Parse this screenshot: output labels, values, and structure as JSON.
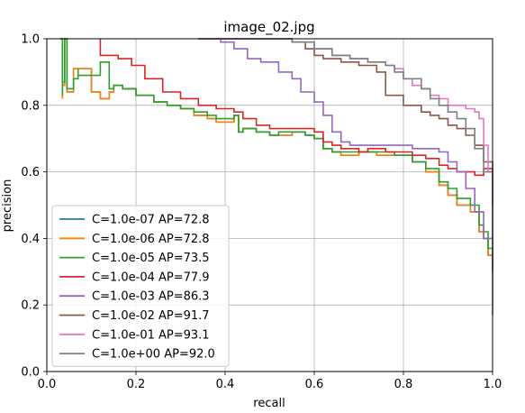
{
  "chart_data": {
    "type": "line",
    "title": "image_02.jpg",
    "xlabel": "recall",
    "ylabel": "precision",
    "xlim": [
      0.0,
      1.0
    ],
    "ylim": [
      0.0,
      1.0
    ],
    "xticks": [
      "0.0",
      "0.2",
      "0.4",
      "0.6",
      "0.8",
      "1.0"
    ],
    "yticks": [
      "0.0",
      "0.2",
      "0.4",
      "0.6",
      "0.8",
      "1.0"
    ],
    "grid": true,
    "legend_position": "lower-left",
    "series": [
      {
        "name": "C=1.0e-07 AP=72.8",
        "color": "#1f77b4",
        "x": [
          0.03,
          0.035,
          0.035,
          0.04,
          0.045,
          0.06,
          0.06,
          0.1,
          0.12,
          0.12,
          0.14,
          0.15,
          0.17,
          0.2,
          0.24,
          0.27,
          0.3,
          0.33,
          0.36,
          0.38,
          0.42,
          0.43,
          0.44,
          0.47,
          0.5,
          0.52,
          0.55,
          0.58,
          0.6,
          0.62,
          0.64,
          0.66,
          0.7,
          0.74,
          0.78,
          0.82,
          0.85,
          0.88,
          0.9,
          0.92,
          0.95,
          0.97,
          0.98,
          0.99,
          1.0
        ],
        "y": [
          1.0,
          0.82,
          0.86,
          1.0,
          0.84,
          0.87,
          0.91,
          0.84,
          0.83,
          0.82,
          0.84,
          0.86,
          0.85,
          0.83,
          0.81,
          0.8,
          0.79,
          0.77,
          0.76,
          0.75,
          0.77,
          0.72,
          0.73,
          0.72,
          0.71,
          0.71,
          0.72,
          0.71,
          0.7,
          0.67,
          0.66,
          0.65,
          0.66,
          0.65,
          0.65,
          0.63,
          0.6,
          0.56,
          0.53,
          0.5,
          0.48,
          0.42,
          0.4,
          0.35,
          0.31
        ]
      },
      {
        "name": "C=1.0e-06 AP=72.8",
        "color": "#ff7f0e",
        "x": [
          0.03,
          0.035,
          0.035,
          0.04,
          0.045,
          0.06,
          0.06,
          0.1,
          0.12,
          0.12,
          0.14,
          0.15,
          0.17,
          0.2,
          0.24,
          0.27,
          0.3,
          0.33,
          0.36,
          0.38,
          0.42,
          0.43,
          0.44,
          0.47,
          0.5,
          0.52,
          0.55,
          0.58,
          0.6,
          0.62,
          0.64,
          0.66,
          0.7,
          0.74,
          0.78,
          0.82,
          0.85,
          0.88,
          0.9,
          0.92,
          0.95,
          0.97,
          0.98,
          0.99,
          1.0
        ],
        "y": [
          1.0,
          0.82,
          0.86,
          1.0,
          0.84,
          0.87,
          0.91,
          0.84,
          0.83,
          0.82,
          0.84,
          0.86,
          0.85,
          0.83,
          0.81,
          0.8,
          0.79,
          0.77,
          0.76,
          0.75,
          0.77,
          0.72,
          0.73,
          0.72,
          0.71,
          0.71,
          0.72,
          0.71,
          0.7,
          0.67,
          0.66,
          0.65,
          0.66,
          0.65,
          0.65,
          0.63,
          0.6,
          0.56,
          0.53,
          0.5,
          0.48,
          0.42,
          0.4,
          0.35,
          0.31
        ]
      },
      {
        "name": "C=1.0e-05 AP=73.5",
        "color": "#2ca02c",
        "x": [
          0.03,
          0.035,
          0.035,
          0.04,
          0.045,
          0.06,
          0.07,
          0.07,
          0.12,
          0.14,
          0.15,
          0.17,
          0.2,
          0.24,
          0.27,
          0.3,
          0.33,
          0.36,
          0.38,
          0.42,
          0.43,
          0.44,
          0.47,
          0.5,
          0.52,
          0.55,
          0.58,
          0.6,
          0.62,
          0.64,
          0.66,
          0.7,
          0.74,
          0.78,
          0.82,
          0.85,
          0.88,
          0.9,
          0.92,
          0.95,
          0.97,
          0.98,
          0.99,
          1.0
        ],
        "y": [
          1.0,
          0.83,
          0.87,
          1.0,
          0.85,
          0.88,
          0.91,
          0.89,
          0.93,
          0.85,
          0.86,
          0.85,
          0.83,
          0.81,
          0.8,
          0.79,
          0.78,
          0.77,
          0.76,
          0.77,
          0.72,
          0.73,
          0.72,
          0.71,
          0.72,
          0.72,
          0.71,
          0.7,
          0.67,
          0.66,
          0.66,
          0.66,
          0.66,
          0.65,
          0.63,
          0.61,
          0.57,
          0.55,
          0.52,
          0.5,
          0.44,
          0.42,
          0.37,
          0.3
        ]
      },
      {
        "name": "C=1.0e-04 AP=77.9",
        "color": "#d62728",
        "x": [
          0.12,
          0.12,
          0.16,
          0.19,
          0.22,
          0.26,
          0.3,
          0.34,
          0.38,
          0.42,
          0.44,
          0.47,
          0.5,
          0.53,
          0.56,
          0.6,
          0.62,
          0.64,
          0.66,
          0.7,
          0.72,
          0.76,
          0.8,
          0.82,
          0.85,
          0.88,
          0.9,
          0.92,
          0.94,
          0.96,
          0.98,
          1.0
        ],
        "y": [
          1.0,
          0.95,
          0.94,
          0.92,
          0.88,
          0.84,
          0.82,
          0.8,
          0.79,
          0.78,
          0.76,
          0.74,
          0.73,
          0.73,
          0.73,
          0.72,
          0.69,
          0.68,
          0.67,
          0.66,
          0.67,
          0.66,
          0.66,
          0.65,
          0.64,
          0.62,
          0.61,
          0.6,
          0.6,
          0.59,
          0.61,
          0.5
        ]
      },
      {
        "name": "C=1.0e-03 AP=86.3",
        "color": "#9467bd",
        "x": [
          0.34,
          0.39,
          0.42,
          0.45,
          0.48,
          0.5,
          0.52,
          0.55,
          0.57,
          0.6,
          0.62,
          0.64,
          0.66,
          0.68,
          0.7,
          0.74,
          0.78,
          0.82,
          0.86,
          0.88,
          0.9,
          0.92,
          0.94,
          0.96,
          0.98,
          1.0
        ],
        "y": [
          1.0,
          0.99,
          0.97,
          0.94,
          0.93,
          0.93,
          0.9,
          0.88,
          0.84,
          0.81,
          0.77,
          0.72,
          0.69,
          0.68,
          0.68,
          0.68,
          0.68,
          0.67,
          0.67,
          0.66,
          0.63,
          0.6,
          0.55,
          0.48,
          0.4,
          0.3
        ]
      },
      {
        "name": "C=1.0e-02 AP=91.7",
        "color": "#8c564b",
        "x": [
          0.34,
          0.5,
          0.55,
          0.58,
          0.6,
          0.62,
          0.66,
          0.7,
          0.74,
          0.76,
          0.78,
          0.8,
          0.84,
          0.86,
          0.88,
          0.9,
          0.92,
          0.94,
          0.96,
          0.98,
          1.0
        ],
        "y": [
          1.0,
          1.0,
          0.99,
          0.97,
          0.95,
          0.94,
          0.93,
          0.92,
          0.9,
          0.83,
          0.83,
          0.8,
          0.78,
          0.77,
          0.76,
          0.74,
          0.73,
          0.71,
          0.68,
          0.63,
          0.5
        ]
      },
      {
        "name": "C=1.0e-01 AP=93.1",
        "color": "#e377c2",
        "x": [
          0.34,
          0.5,
          0.55,
          0.6,
          0.64,
          0.68,
          0.72,
          0.76,
          0.78,
          0.8,
          0.82,
          0.84,
          0.86,
          0.88,
          0.9,
          0.92,
          0.94,
          0.96,
          0.97,
          0.98,
          0.99,
          1.0
        ],
        "y": [
          1.0,
          1.0,
          0.99,
          0.97,
          0.95,
          0.94,
          0.93,
          0.92,
          0.91,
          0.88,
          0.86,
          0.85,
          0.83,
          0.82,
          0.8,
          0.8,
          0.79,
          0.78,
          0.76,
          0.68,
          0.6,
          0.4
        ]
      },
      {
        "name": "C=1.0e+00 AP=92.0",
        "color": "#7f7f7f",
        "x": [
          0.34,
          0.5,
          0.55,
          0.6,
          0.64,
          0.68,
          0.72,
          0.76,
          0.78,
          0.8,
          0.84,
          0.86,
          0.88,
          0.9,
          0.92,
          0.94,
          0.96,
          0.98,
          1.0
        ],
        "y": [
          1.0,
          1.0,
          0.99,
          0.97,
          0.95,
          0.94,
          0.93,
          0.92,
          0.9,
          0.88,
          0.85,
          0.82,
          0.8,
          0.78,
          0.76,
          0.73,
          0.67,
          0.6,
          0.17
        ]
      }
    ]
  }
}
